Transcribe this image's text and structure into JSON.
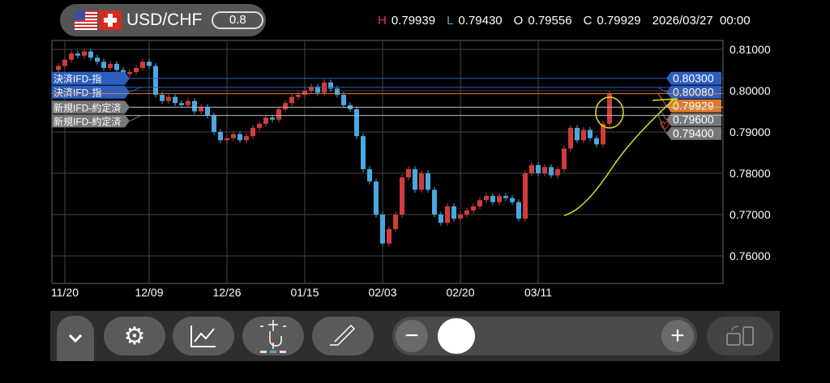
{
  "header": {
    "symbol": "USD/CHF",
    "lot": "0.8",
    "h_label": "H",
    "h": "0.79939",
    "l_label": "L",
    "l": "0.79430",
    "o_label": "O",
    "o": "0.79556",
    "c_label": "C",
    "c": "0.79929",
    "datetime": "2026/03/27  00:00"
  },
  "colors": {
    "up": "#d23b3b",
    "down": "#4aa8e0",
    "grid": "#444",
    "order_blue": "#2d5fc0",
    "current": "#e07a2e",
    "position_grey": "#777",
    "annotation": "#d8e020",
    "h": "#e0307a",
    "l": "#4aa8e0"
  },
  "orders": [
    {
      "tag": "決済IFD-指",
      "price": "0.80300",
      "value": 0.803,
      "kind": "blue"
    },
    {
      "tag": "決済IFD-指",
      "price": "0.80080",
      "value": 0.8008,
      "kind": "blue"
    },
    {
      "tag": "",
      "price": "0.79929",
      "value": 0.79929,
      "kind": "current"
    },
    {
      "tag": "新規IFD-約定済",
      "price": "0.79600",
      "value": 0.796,
      "kind": "grey"
    },
    {
      "tag": "新規IFD-約定済",
      "price": "0.79400",
      "value": 0.794,
      "kind": "grey"
    }
  ],
  "chart_data": {
    "type": "candlestick",
    "y_ticks": [
      "0.81000",
      "0.80000",
      "0.79000",
      "0.78000",
      "0.77000",
      "0.76000"
    ],
    "ylim": [
      0.7545,
      0.8125
    ],
    "x_ticks": [
      {
        "label": "11/20",
        "index": 1
      },
      {
        "label": "12/09",
        "index": 14
      },
      {
        "label": "12/26",
        "index": 26
      },
      {
        "label": "01/15",
        "index": 38
      },
      {
        "label": "02/03",
        "index": 50
      },
      {
        "label": "02/20",
        "index": 62
      },
      {
        "label": "03/11",
        "index": 74
      }
    ],
    "first_open": 0.805,
    "close": [
      0.806,
      0.8075,
      0.809,
      0.8085,
      0.8095,
      0.808,
      0.807,
      0.8055,
      0.8065,
      0.805,
      0.804,
      0.8045,
      0.8055,
      0.807,
      0.806,
      0.799,
      0.7975,
      0.7985,
      0.797,
      0.7965,
      0.7975,
      0.795,
      0.796,
      0.794,
      0.79,
      0.788,
      0.7885,
      0.7895,
      0.788,
      0.789,
      0.791,
      0.792,
      0.7935,
      0.793,
      0.7955,
      0.797,
      0.7985,
      0.799,
      0.8,
      0.801,
      0.7995,
      0.802,
      0.8005,
      0.799,
      0.7965,
      0.7955,
      0.789,
      0.781,
      0.778,
      0.77,
      0.763,
      0.7665,
      0.77,
      0.779,
      0.781,
      0.776,
      0.78,
      0.776,
      0.77,
      0.768,
      0.772,
      0.769,
      0.77,
      0.771,
      0.772,
      0.7735,
      0.7745,
      0.773,
      0.7745,
      0.774,
      0.773,
      0.769,
      0.78,
      0.782,
      0.78,
      0.7815,
      0.7795,
      0.781,
      0.786,
      0.791,
      0.788,
      0.7905,
      0.7885,
      0.787,
      0.792,
      0.7993
    ]
  },
  "toolbar": {
    "zoom_out": "−",
    "zoom_in": "+"
  }
}
